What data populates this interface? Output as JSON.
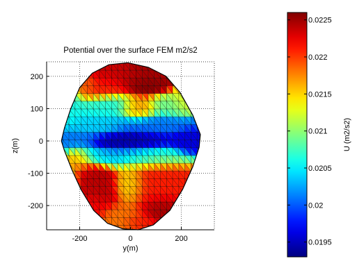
{
  "chart_data": {
    "type": "heatmap",
    "title": "Potential over the surface FEM m2/s2",
    "xlabel": "y(m)",
    "ylabel": "z(m)",
    "xlim": [
      -330,
      330
    ],
    "ylim": [
      -275,
      245
    ],
    "xticks": [
      {
        "value": -200,
        "label": "-200"
      },
      {
        "value": 0,
        "label": "0"
      },
      {
        "value": 200,
        "label": "200"
      }
    ],
    "yticks": [
      {
        "value": 200,
        "label": "200"
      },
      {
        "value": 100,
        "label": "100"
      },
      {
        "value": 0,
        "label": "0"
      },
      {
        "value": -100,
        "label": "-100"
      },
      {
        "value": -200,
        "label": "-200"
      }
    ],
    "grid": true,
    "grid_style": "dotted",
    "colormap": "jet",
    "colorbar": {
      "label": "U (m2/s2)",
      "range": [
        0.0193,
        0.0226
      ],
      "ticks": [
        {
          "value": 0.0225,
          "label": "0.0225"
        },
        {
          "value": 0.022,
          "label": "0.022"
        },
        {
          "value": 0.0215,
          "label": "0.0215"
        },
        {
          "value": 0.021,
          "label": "0.021"
        },
        {
          "value": 0.0205,
          "label": "0.0205"
        },
        {
          "value": 0.02,
          "label": "0.02"
        },
        {
          "value": 0.0195,
          "label": "0.0195"
        }
      ]
    },
    "surface": {
      "outline": [
        [
          -10,
          242
        ],
        [
          70,
          228
        ],
        [
          140,
          200
        ],
        [
          195,
          150
        ],
        [
          245,
          80
        ],
        [
          275,
          20
        ],
        [
          270,
          -20
        ],
        [
          245,
          -80
        ],
        [
          205,
          -150
        ],
        [
          155,
          -215
        ],
        [
          90,
          -260
        ],
        [
          30,
          -275
        ],
        [
          -30,
          -272
        ],
        [
          -90,
          -255
        ],
        [
          -145,
          -215
        ],
        [
          -195,
          -150
        ],
        [
          -230,
          -90
        ],
        [
          -260,
          -30
        ],
        [
          -272,
          0
        ],
        [
          -260,
          40
        ],
        [
          -235,
          100
        ],
        [
          -200,
          165
        ],
        [
          -150,
          210
        ],
        [
          -85,
          236
        ]
      ],
      "value_min": 0.0193,
      "value_max": 0.0226,
      "sources": [
        {
          "y": 0,
          "z": 210,
          "value": 0.02235,
          "ry": 330,
          "rz": 25
        },
        {
          "y": 75,
          "z": 200,
          "value": 0.0226,
          "ry": 70,
          "rz": 40
        },
        {
          "y": -175,
          "z": 180,
          "value": 0.0217,
          "ry": 30,
          "rz": 30
        },
        {
          "y": -150,
          "z": 170,
          "value": 0.0221,
          "ry": 90,
          "rz": 30
        },
        {
          "y": -240,
          "z": 120,
          "value": 0.0206,
          "ry": 40,
          "rz": 50
        },
        {
          "y": -100,
          "z": 105,
          "value": 0.02065,
          "ry": 90,
          "rz": 25
        },
        {
          "y": 30,
          "z": 100,
          "value": 0.02175,
          "ry": 50,
          "rz": 25
        },
        {
          "y": 150,
          "z": 110,
          "value": 0.0209,
          "ry": 60,
          "rz": 25
        },
        {
          "y": 210,
          "z": 130,
          "value": 0.0213,
          "ry": 40,
          "rz": 30
        },
        {
          "y": -130,
          "z": 50,
          "value": 0.0204,
          "ry": 90,
          "rz": 25
        },
        {
          "y": 80,
          "z": 50,
          "value": 0.0201,
          "ry": 110,
          "rz": 25
        },
        {
          "y": -220,
          "z": 0,
          "value": 0.0201,
          "ry": 60,
          "rz": 25
        },
        {
          "y": 0,
          "z": 0,
          "value": 0.0194,
          "ry": 110,
          "rz": 25
        },
        {
          "y": 230,
          "z": 0,
          "value": 0.0196,
          "ry": 50,
          "rz": 25
        },
        {
          "y": -100,
          "z": -50,
          "value": 0.0203,
          "ry": 80,
          "rz": 20
        },
        {
          "y": 60,
          "z": -50,
          "value": 0.0205,
          "ry": 110,
          "rz": 25
        },
        {
          "y": -210,
          "z": -60,
          "value": 0.0216,
          "ry": 40,
          "rz": 30
        },
        {
          "y": -150,
          "z": -140,
          "value": 0.0224,
          "ry": 70,
          "rz": 60
        },
        {
          "y": -160,
          "z": -200,
          "value": 0.02215,
          "ry": 50,
          "rz": 30
        },
        {
          "y": 0,
          "z": -130,
          "value": 0.0214,
          "ry": 40,
          "rz": 40
        },
        {
          "y": 100,
          "z": -130,
          "value": 0.0221,
          "ry": 90,
          "rz": 60
        },
        {
          "y": 120,
          "z": -210,
          "value": 0.0225,
          "ry": 50,
          "rz": 30
        },
        {
          "y": -40,
          "z": -240,
          "value": 0.0218,
          "ry": 60,
          "rz": 30
        },
        {
          "y": 40,
          "z": -250,
          "value": 0.0221,
          "ry": 50,
          "rz": 20
        },
        {
          "y": -240,
          "z": -140,
          "value": 0.0212,
          "ry": 30,
          "rz": 40
        }
      ]
    }
  }
}
